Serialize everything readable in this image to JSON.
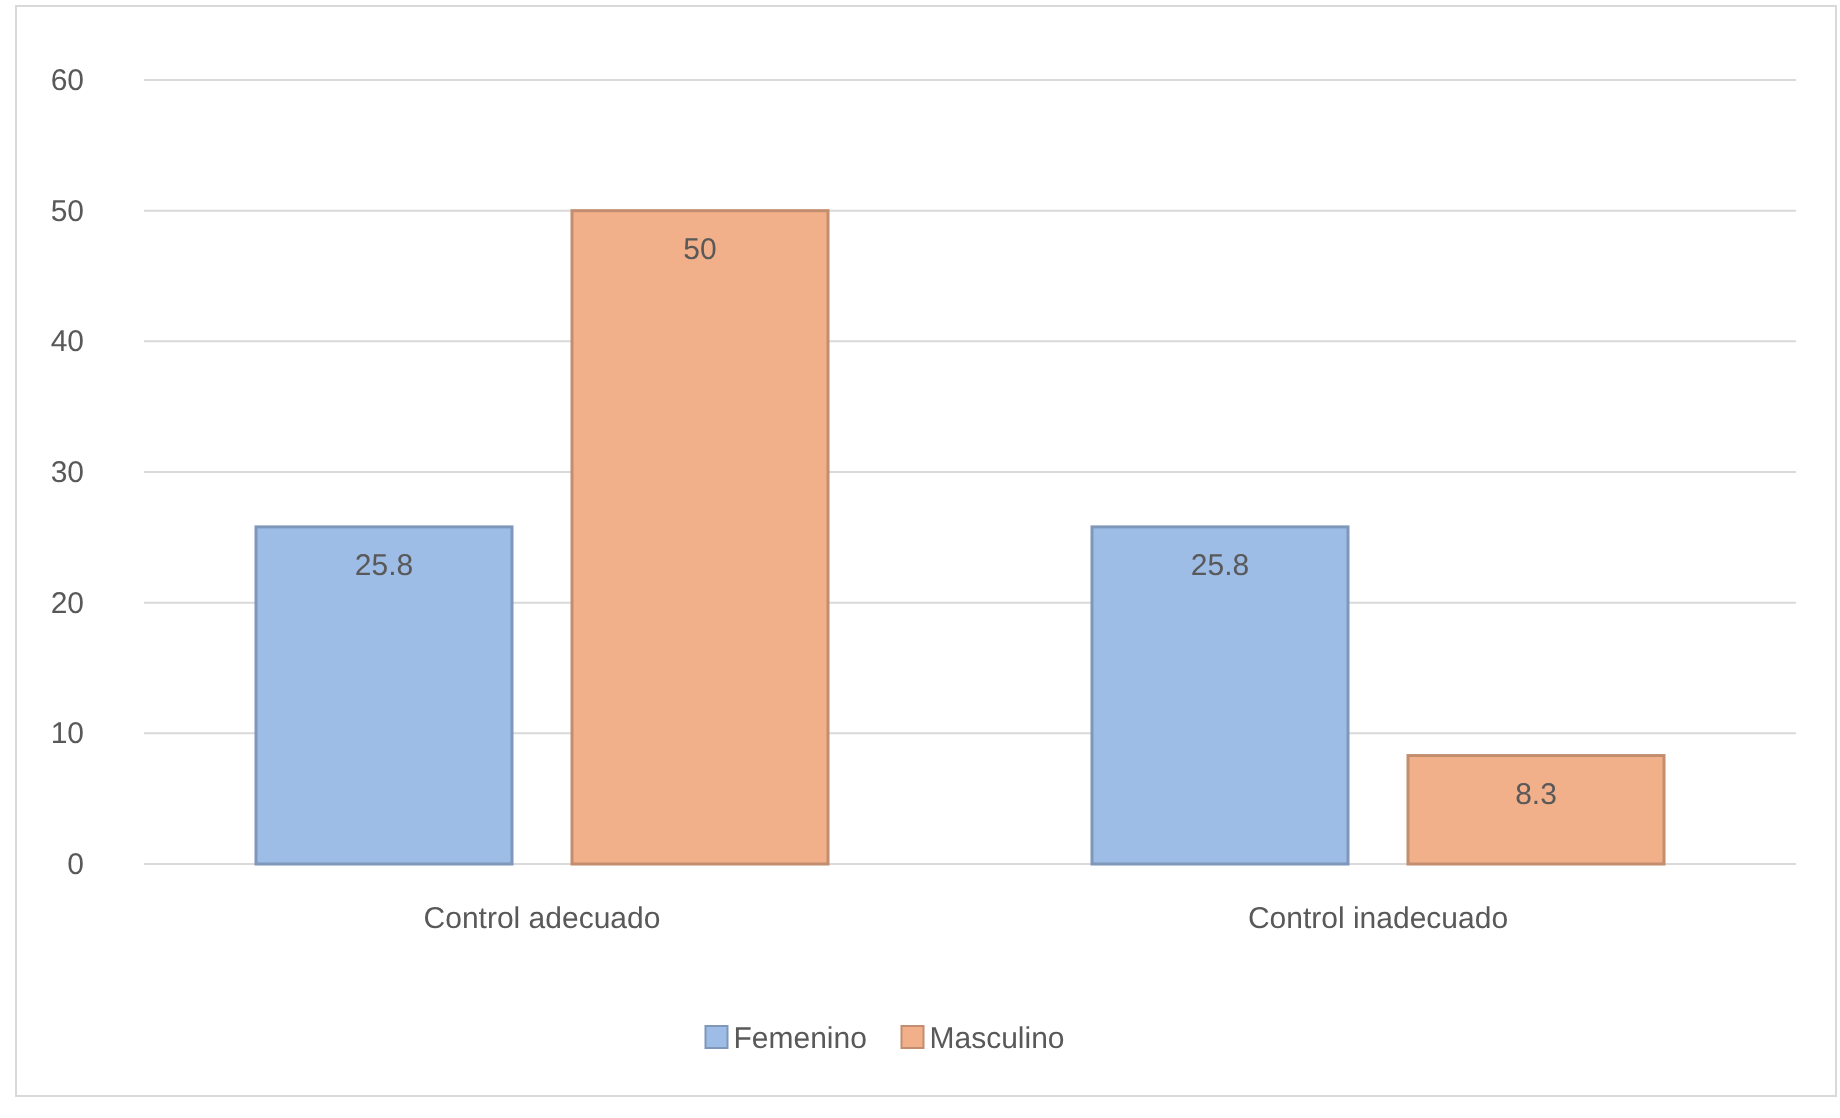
{
  "chart_data": {
    "type": "bar",
    "categories": [
      "Control adecuado",
      "Control inadecuado"
    ],
    "series": [
      {
        "name": "Femenino",
        "color": "#9dbce6",
        "values": [
          25.8,
          25.8
        ]
      },
      {
        "name": "Masculino",
        "color": "#f2b08a",
        "values": [
          50,
          8.3
        ]
      }
    ],
    "ylim": [
      0,
      60
    ],
    "yticks": [
      0,
      10,
      20,
      30,
      40,
      50,
      60
    ],
    "grid": "y",
    "legend": "bottom",
    "data_labels": true
  }
}
